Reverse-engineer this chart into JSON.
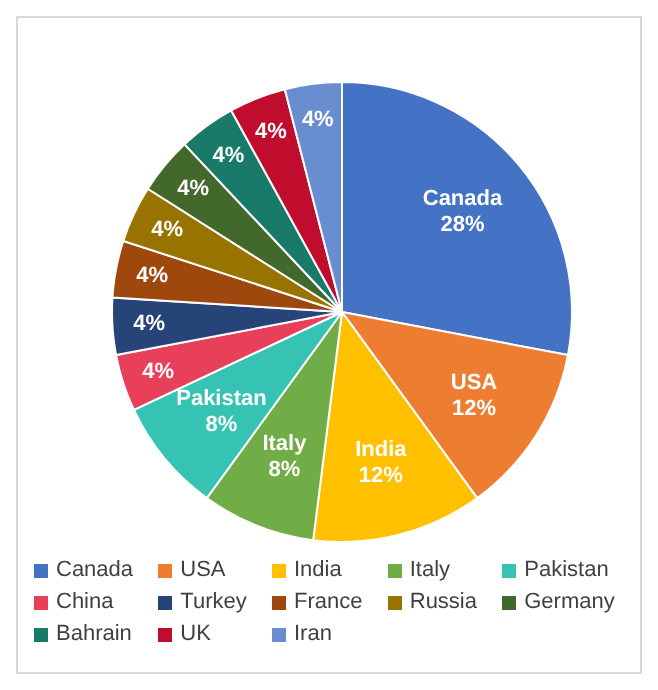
{
  "chart_data": {
    "type": "pie",
    "categories": [
      "Canada",
      "USA",
      "India",
      "Italy",
      "Pakistan",
      "China",
      "Turkey",
      "France",
      "Russia",
      "Germany",
      "Bahrain",
      "UK",
      "Iran"
    ],
    "values": [
      28,
      12,
      12,
      8,
      8,
      4,
      4,
      4,
      4,
      4,
      4,
      4,
      4
    ],
    "colors": [
      "#4472c4",
      "#ed7d31",
      "#ffc000",
      "#70ad47",
      "#36c3b4",
      "#e8405a",
      "#264478",
      "#9e480e",
      "#997300",
      "#43682b",
      "#1a7a6a",
      "#c00d2e",
      "#698ed0"
    ],
    "value_labels": [
      "Canada\n28%",
      "USA\n12%",
      "India\n12%",
      "Italy\n8%",
      "Pakistan\n8%",
      "4%",
      "4%",
      "4%",
      "4%",
      "4%",
      "4%",
      "4%",
      "4%"
    ],
    "legend": "bottom"
  }
}
